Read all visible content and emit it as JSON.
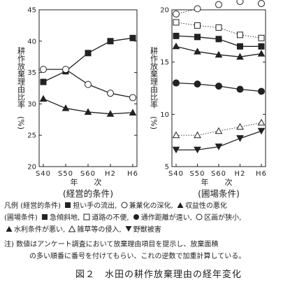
{
  "chart_data": [
    {
      "type": "line",
      "panel_caption": "(経営的条件)",
      "categories": [
        "S40",
        "S50",
        "S60",
        "H2",
        "H6"
      ],
      "ylabel": "耕作放棄理由比率　(%)",
      "xlabel": "年　次",
      "ylim": [
        20,
        45
      ],
      "yticks": [
        20,
        25,
        30,
        35,
        40,
        45
      ],
      "grid": false,
      "series": [
        {
          "name": "担い手の流出",
          "marker": "square-filled",
          "line": "solid",
          "values": [
            33.5,
            35.2,
            38.1,
            40.0,
            40.5
          ]
        },
        {
          "name": "兼業化の深化",
          "marker": "circle-open",
          "line": "solid",
          "values": [
            35.5,
            35.5,
            33.1,
            31.7,
            31.0
          ]
        },
        {
          "name": "収益性の悪化",
          "marker": "triangle-filled",
          "line": "solid",
          "values": [
            30.8,
            29.3,
            28.7,
            28.4,
            28.6
          ]
        }
      ]
    },
    {
      "type": "line",
      "panel_caption": "(圃場条件)",
      "categories": [
        "S40",
        "S50",
        "S60",
        "H2",
        "H6"
      ],
      "ylabel": "耕作放棄理由比率　(%)",
      "xlabel": "年　次",
      "ylim": [
        5,
        20
      ],
      "yticks": [
        5,
        10,
        15,
        20
      ],
      "grid": false,
      "series": [
        {
          "name": "急傾斜地",
          "marker": "square-filled",
          "line": "solid",
          "values": [
            17.5,
            17.4,
            17.2,
            16.5,
            16.5
          ]
        },
        {
          "name": "道路の不便",
          "marker": "square-open",
          "line": "dotted",
          "values": [
            18.8,
            18.5,
            18.3,
            17.6,
            17.3
          ]
        },
        {
          "name": "通作距離が遠い",
          "marker": "circle-filled",
          "line": "solid",
          "values": [
            13.0,
            12.9,
            12.7,
            12.4,
            12.2
          ]
        },
        {
          "name": "区画が狭小",
          "marker": "circle-open",
          "line": "dotted",
          "values": [
            19.6,
            20.1,
            20.5,
            20.8,
            20.6
          ]
        },
        {
          "name": "水利条件が悪い",
          "marker": "triangle-filled",
          "line": "solid",
          "values": [
            16.5,
            16.0,
            15.7,
            15.5,
            15.8
          ]
        },
        {
          "name": "雑草等の侵入",
          "marker": "triangle-open",
          "line": "dotted",
          "values": [
            8.0,
            8.0,
            8.4,
            8.8,
            9.2
          ]
        },
        {
          "name": "野獣被害",
          "marker": "triangle-down-filled",
          "line": "solid",
          "values": [
            6.6,
            6.6,
            6.9,
            7.7,
            8.4
          ]
        }
      ]
    }
  ],
  "legend": {
    "line1": {
      "prefix": "凡例",
      "group": "(経営的条件)",
      "item1": "担い手の流出,",
      "item2": "兼業化の深化,",
      "item3": "収益性の悪化"
    },
    "line2": {
      "group": "(圃場条件)",
      "item1": "急傾斜地,",
      "item2": "道路の不便,",
      "item3": "通作距離が遠い,",
      "item4": "区画が狭小,"
    },
    "line3": {
      "item1": "水利条件が悪い,",
      "item2": "雑草等の侵入,",
      "item3": "野獣被害"
    }
  },
  "note": {
    "prefix": "注)",
    "line1": "数値はアンケート調査において放棄理由項目を提示し、放棄面積",
    "line2": "の多い順番に番号を付けてもらい、これの逆数で加重計算している。"
  },
  "figure_title": "図２　水田の耕作放棄理由の経年変化"
}
